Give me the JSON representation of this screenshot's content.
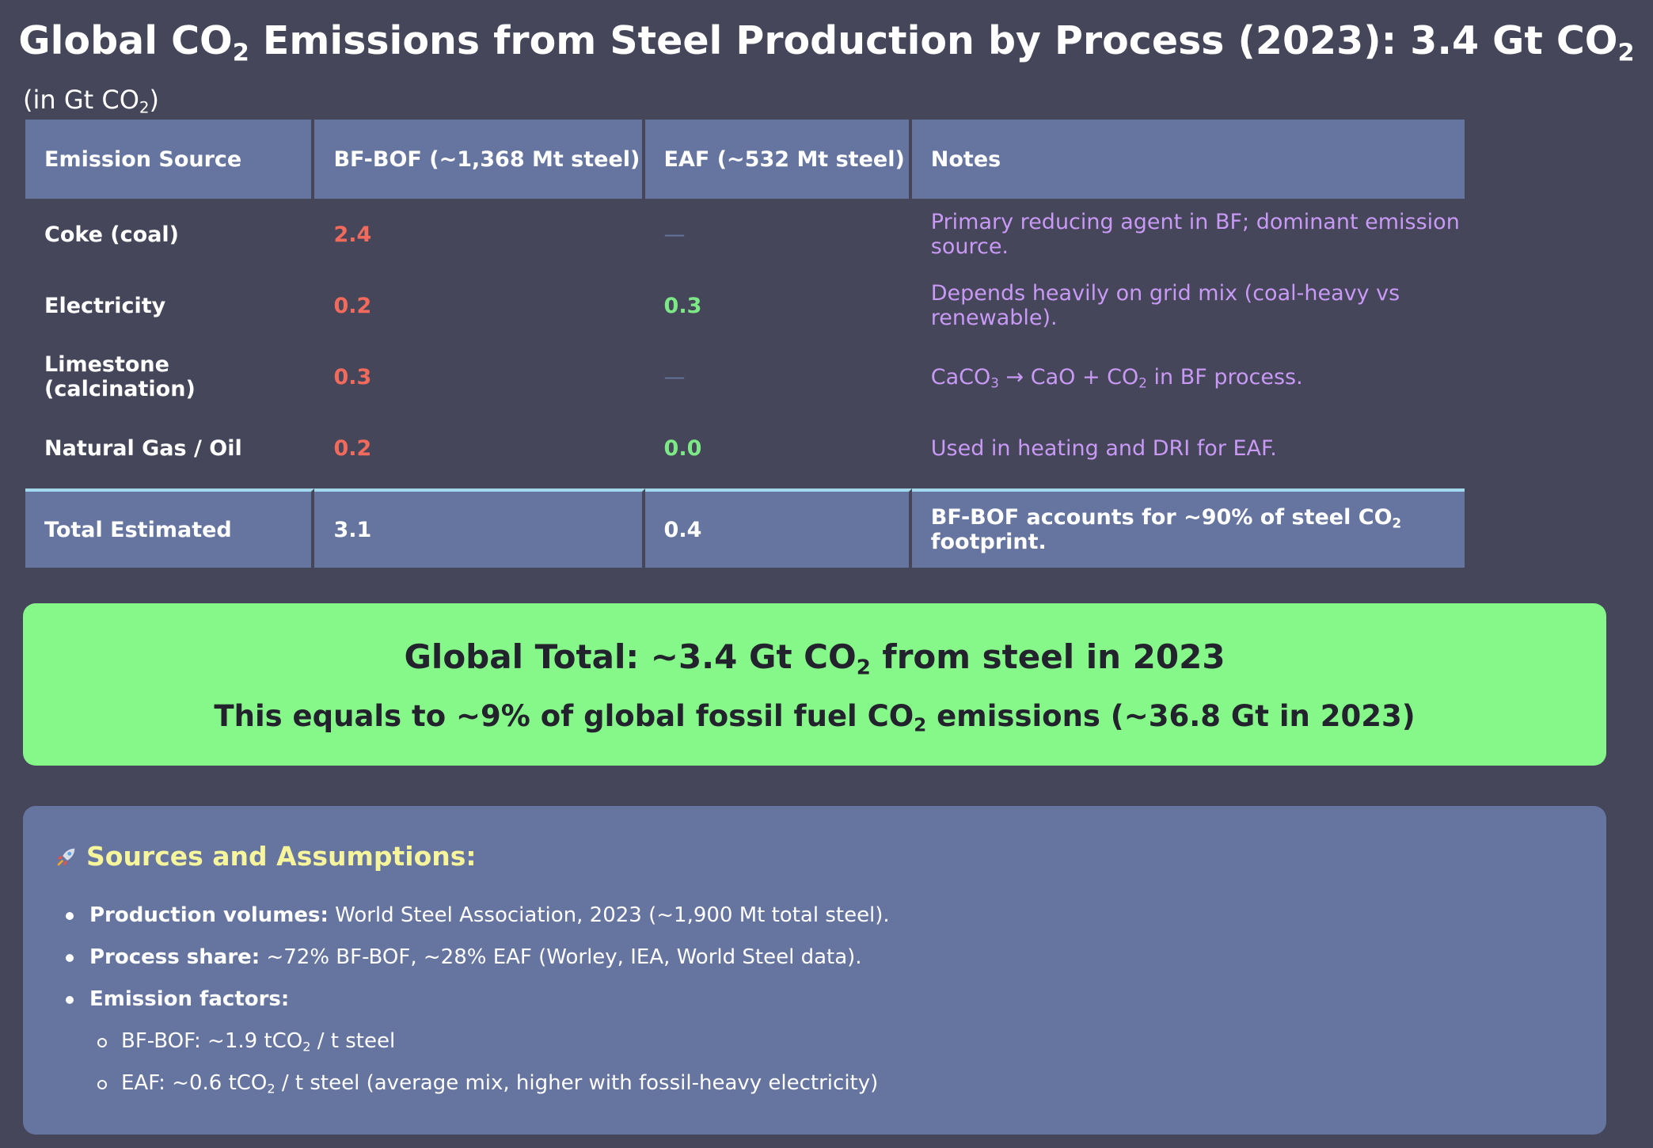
{
  "title": {
    "prefix": "Global CO",
    "middle": " Emissions from Steel Production by Process (2023): 3.4 Gt CO",
    "sub": "2"
  },
  "unit_label": {
    "prefix": "(in Gt CO",
    "sub": "2",
    "suffix": ")"
  },
  "table": {
    "headers": [
      "Emission Source",
      "BF-BOF (~1,368 Mt steel)",
      "EAF (~532 Mt steel)",
      "Notes"
    ],
    "rows": [
      {
        "source": "Coke (coal)",
        "bf_bof": "2.4",
        "eaf": "—",
        "note": "Primary reducing agent in BF; dominant emission source."
      },
      {
        "source": "Electricity",
        "bf_bof": "0.2",
        "eaf": "0.3",
        "note": "Depends heavily on grid mix (coal-heavy vs renewable)."
      },
      {
        "source": "Limestone (calcination)",
        "bf_bof": "0.3",
        "eaf": "—",
        "note_parts": {
          "a": "CaCO",
          "a_sub": "3",
          "b": " → CaO + CO",
          "b_sub": "2",
          "c": " in BF process."
        }
      },
      {
        "source": "Natural Gas / Oil",
        "bf_bof": "0.2",
        "eaf": "0.0",
        "note": "Used in heating and DRI for EAF."
      }
    ],
    "total": {
      "source": "Total Estimated",
      "bf_bof": "3.1",
      "eaf": "0.4",
      "note_parts": {
        "a": "BF-BOF accounts for ~90% of steel CO",
        "sub": "2",
        "b": " footprint."
      }
    }
  },
  "summary": {
    "line1": {
      "a": "Global Total: ~3.4 Gt CO",
      "sub": "2",
      "b": " from steel in 2023"
    },
    "line2": {
      "a": "This equals to ~9% of global fossil fuel CO",
      "sub": "2",
      "b": " emissions (~36.8 Gt in 2023)"
    }
  },
  "sources": {
    "icon": "rocket-icon",
    "heading": "Sources and Assumptions:",
    "items": [
      {
        "label": "Production volumes:",
        "text": " World Steel Association, 2023 (~1,900 Mt total steel)."
      },
      {
        "label": "Process share:",
        "text": " ~72% BF-BOF, ~28% EAF (Worley, IEA, World Steel data)."
      },
      {
        "label": "Emission factors:",
        "text": ""
      }
    ],
    "sub_items": [
      {
        "a": "BF-BOF: ~1.9 tCO",
        "sub": "2",
        "b": " / t steel"
      },
      {
        "a": "EAF: ~0.6 tCO",
        "sub": "2",
        "b": " / t steel (average mix, higher with fossil-heavy electricity)"
      }
    ]
  },
  "colors": {
    "background": "#454659",
    "panel": "#6674a0",
    "bf_bof_value": "#f26a5c",
    "eaf_value": "#7de886",
    "note_text": "#c899f5",
    "summary_bg": "#86f88a",
    "heading_yellow": "#f6f59c",
    "total_border": "#a2d8ec"
  }
}
